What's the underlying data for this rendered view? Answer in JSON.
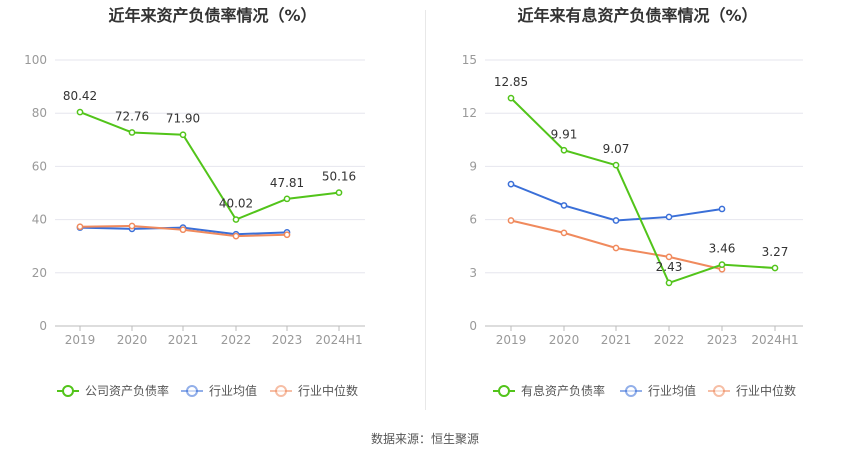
{
  "chart_data": [
    {
      "type": "line",
      "title": "近年来资产负债率情况（%）",
      "categories": [
        "2019",
        "2020",
        "2021",
        "2022",
        "2023",
        "2024H1"
      ],
      "ylim": [
        0,
        100
      ],
      "yticks": [
        0,
        20,
        40,
        60,
        80,
        100
      ],
      "grid": true,
      "legend_position": "bottom",
      "series": [
        {
          "name": "公司资产负债率",
          "color": "#52c41a",
          "values": [
            80.42,
            72.76,
            71.9,
            40.02,
            47.81,
            50.16
          ],
          "labels": [
            "80.42",
            "72.76",
            "71.90",
            "40.02",
            "47.81",
            "50.16"
          ]
        },
        {
          "name": "行业均值",
          "color": "#3a6fd8",
          "values": [
            37.0,
            36.5,
            37.0,
            34.5,
            35.2,
            null
          ]
        },
        {
          "name": "行业中位数",
          "color": "#f08a5d",
          "values": [
            37.3,
            37.6,
            36.2,
            33.8,
            34.3,
            null
          ]
        }
      ]
    },
    {
      "type": "line",
      "title": "近年来有息资产负债率情况（%）",
      "categories": [
        "2019",
        "2020",
        "2021",
        "2022",
        "2023",
        "2024H1"
      ],
      "ylim": [
        0,
        15
      ],
      "yticks": [
        0,
        3,
        6,
        9,
        12,
        15
      ],
      "grid": true,
      "legend_position": "bottom",
      "series": [
        {
          "name": "有息资产负债率",
          "color": "#52c41a",
          "values": [
            12.85,
            9.91,
            9.07,
            2.43,
            3.46,
            3.27
          ],
          "labels": [
            "12.85",
            "9.91",
            "9.07",
            "2.43",
            "3.46",
            "3.27"
          ]
        },
        {
          "name": "行业均值",
          "color": "#3a6fd8",
          "values": [
            8.0,
            6.8,
            5.95,
            6.15,
            6.6,
            null
          ]
        },
        {
          "name": "行业中位数",
          "color": "#f08a5d",
          "values": [
            5.95,
            5.25,
            4.4,
            3.9,
            3.2,
            null
          ]
        }
      ]
    }
  ],
  "footer": {
    "source": "数据来源：恒生聚源"
  },
  "colors": {
    "axis_text": "#999999",
    "grid": "#e6e6ee",
    "label_text": "#333333"
  }
}
